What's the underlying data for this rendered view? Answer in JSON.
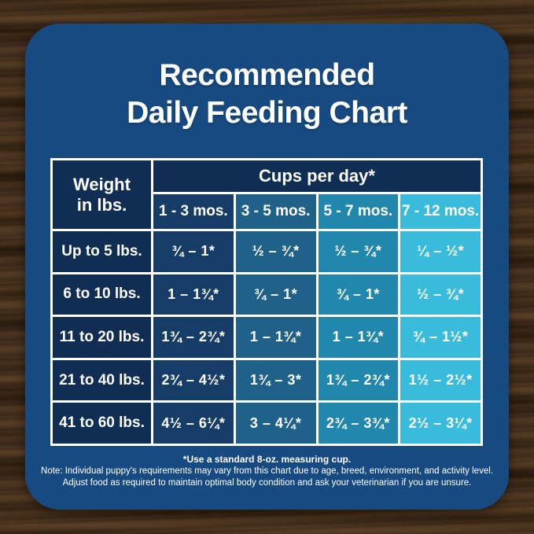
{
  "chart_data": {
    "type": "table",
    "title": "Recommended Daily Feeding Chart",
    "title_lines": [
      "Recommended",
      "Daily Feeding Chart"
    ],
    "row_header": "Weight\nin lbs.",
    "col_group_header": "Cups per day*",
    "columns": [
      "1 - 3 mos.",
      "3 - 5 mos.",
      "5 - 7 mos.",
      "7 - 12 mos."
    ],
    "rows": [
      {
        "weight": "Up to 5 lbs.",
        "values": [
          "¾ – 1*",
          "½ – ¾*",
          "½ – ¾*",
          "¼ – ½*"
        ]
      },
      {
        "weight": "6 to 10 lbs.",
        "values": [
          "1 – 1¾*",
          "¾ – 1*",
          "¾ – 1*",
          "½ – ¾*"
        ]
      },
      {
        "weight": "11 to 20 lbs.",
        "values": [
          "1¾ – 2¾*",
          "1 – 1¾*",
          "1 – 1¾*",
          "¾ – 1½*"
        ]
      },
      {
        "weight": "21 to 40 lbs.",
        "values": [
          "2¾ – 4½*",
          "1¾ – 3*",
          "1¾ – 2¾*",
          "1½ – 2½*"
        ]
      },
      {
        "weight": "41 to 60 lbs.",
        "values": [
          "4½ – 6¼*",
          "3 – 4¼*",
          "2¾ – 3¾*",
          "2½ – 3¼*"
        ]
      }
    ],
    "footnote": "*Use a standard 8-oz. measuring cup.",
    "notes": [
      "Note: Individual puppy's requirements may vary from this chart due to age, breed, environment, and activity level.",
      "Adjust food as required to maintain optimal body condition and ask your veterinarian if you are unsure."
    ]
  },
  "colors": {
    "card-blue": "#174A80",
    "header-navy": "#102E54",
    "col-1-3": "#163D67",
    "col-3-5": "#20618A",
    "col-5-7": "#2187AC",
    "col-7-12": "#39BCDB",
    "grid-line": "#FFFFFF",
    "text-white": "#FFFFFF"
  }
}
